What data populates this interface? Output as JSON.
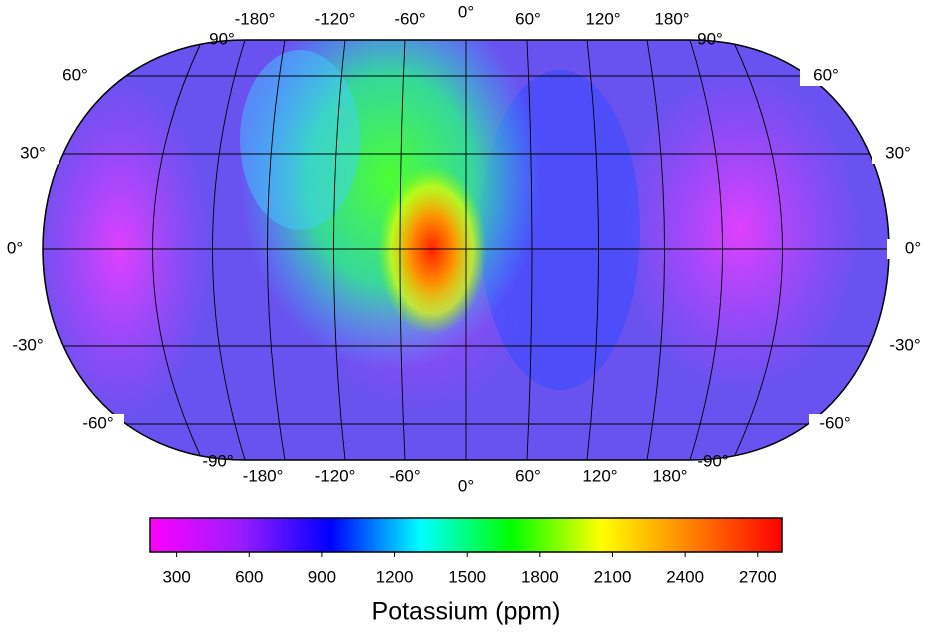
{
  "map": {
    "top_labels": [
      "90°",
      "-180°",
      "-120°",
      "-60°",
      "0°",
      "60°",
      "120°",
      "180°",
      "90°"
    ],
    "bottom_labels": [
      "-90°",
      "-180°",
      "-120°",
      "-60°",
      "0°",
      "60°",
      "120°",
      "180°",
      "-90°"
    ],
    "left_labels": [
      "60°",
      "30°",
      "0°",
      "-30°",
      "-60°"
    ],
    "right_labels": [
      "60°",
      "30°",
      "0°",
      "-30°",
      "-60°"
    ]
  },
  "colorbar": {
    "label": "Potassium (ppm)",
    "range": [
      190,
      2800
    ],
    "ticks": [
      300,
      600,
      900,
      1200,
      1500,
      1800,
      2100,
      2400,
      2700
    ],
    "colors": [
      "#ff00ff",
      "#9a1cff",
      "#0000ff",
      "#00ffff",
      "#00ff00",
      "#ffff00",
      "#ff8000",
      "#ff0000"
    ]
  }
}
